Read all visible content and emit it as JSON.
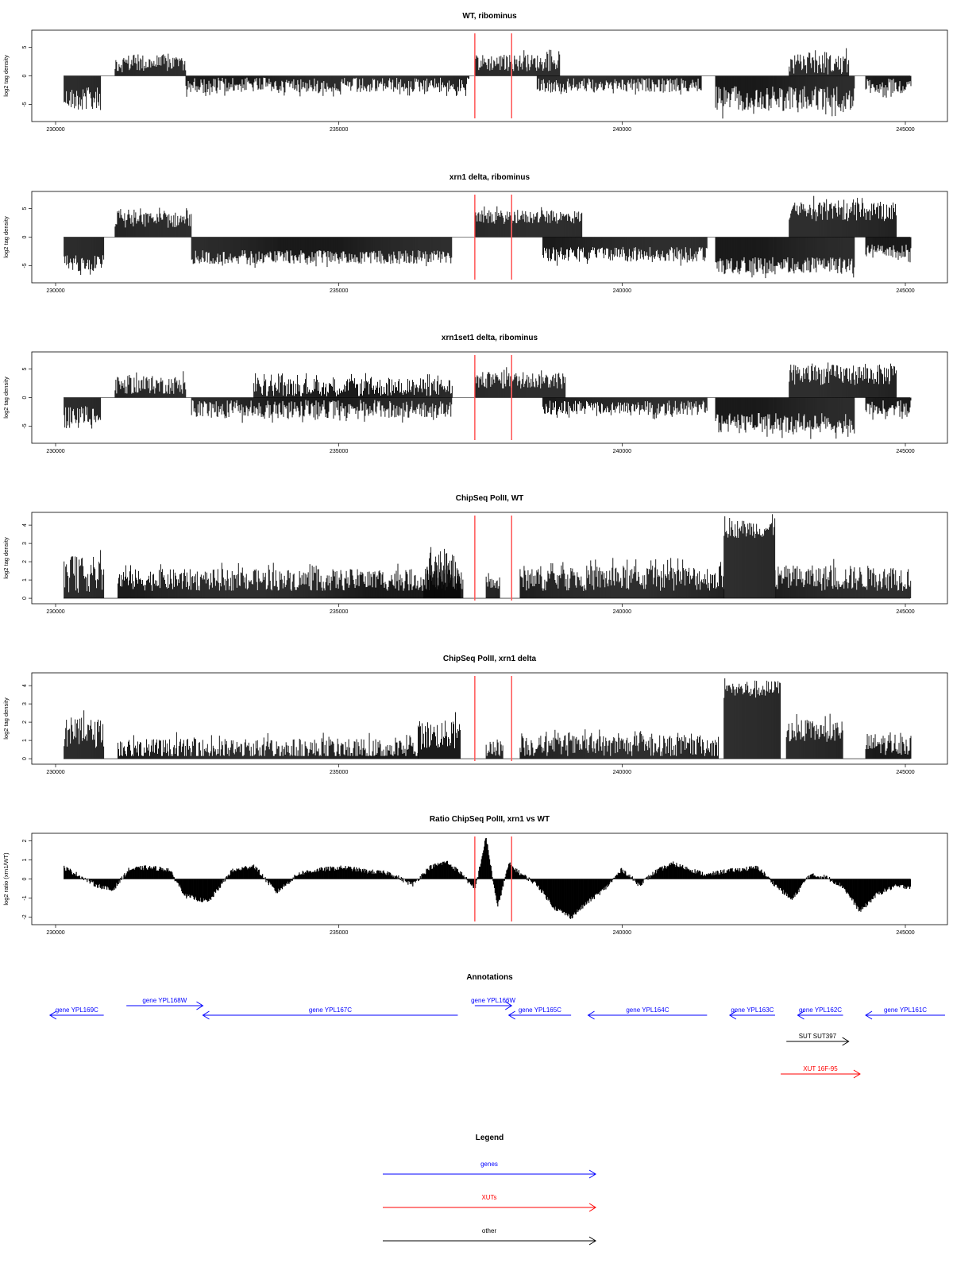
{
  "chart_data": [
    {
      "type": "bar",
      "title": "WT, ribominus",
      "ylabel": "log2 tag density",
      "xlim": [
        230000,
        245000
      ],
      "ylim": [
        -8,
        8
      ],
      "xticks": [
        "230000",
        "235000",
        "240000",
        "245000"
      ],
      "yticks": [
        "-5",
        "0",
        "5"
      ],
      "markers": [
        237400,
        238050
      ],
      "segments": [
        {
          "from": 230150,
          "to": 230800,
          "sign": -1,
          "amp": 4.0,
          "var": 2.0
        },
        {
          "from": 231050,
          "to": 232300,
          "sign": 1,
          "amp": 2.2,
          "var": 1.6
        },
        {
          "from": 232300,
          "to": 237300,
          "sign": -1,
          "amp": 1.6,
          "var": 1.3
        },
        {
          "from": 237400,
          "to": 238900,
          "sign": 1,
          "amp": 2.3,
          "var": 1.5
        },
        {
          "from": 238500,
          "to": 241400,
          "sign": -1,
          "amp": 1.6,
          "var": 1.2
        },
        {
          "from": 241650,
          "to": 244100,
          "sign": -1,
          "amp": 4.0,
          "var": 2.2
        },
        {
          "from": 242950,
          "to": 244000,
          "sign": 1,
          "amp": 2.0,
          "var": 1.8
        },
        {
          "from": 244300,
          "to": 245100,
          "sign": -1,
          "amp": 1.8,
          "var": 1.3
        }
      ]
    },
    {
      "type": "bar",
      "title": "xrn1 delta, ribominus",
      "ylabel": "log2 tag density",
      "xlim": [
        230000,
        245000
      ],
      "ylim": [
        -8,
        8
      ],
      "xticks": [
        "230000",
        "235000",
        "240000",
        "245000"
      ],
      "yticks": [
        "-5",
        "0",
        "5"
      ],
      "markers": [
        237400,
        238050
      ],
      "segments": [
        {
          "from": 230150,
          "to": 230850,
          "sign": -1,
          "amp": 4.5,
          "var": 1.5
        },
        {
          "from": 231050,
          "to": 232400,
          "sign": 1,
          "amp": 3.0,
          "var": 1.4
        },
        {
          "from": 232400,
          "to": 237000,
          "sign": -1,
          "amp": 3.5,
          "var": 1.2
        },
        {
          "from": 237400,
          "to": 239300,
          "sign": 1,
          "amp": 3.5,
          "var": 1.2
        },
        {
          "from": 238600,
          "to": 241500,
          "sign": -1,
          "amp": 3.0,
          "var": 1.3
        },
        {
          "from": 241650,
          "to": 244100,
          "sign": -1,
          "amp": 5.0,
          "var": 1.5
        },
        {
          "from": 242950,
          "to": 244850,
          "sign": 1,
          "amp": 4.5,
          "var": 1.7
        },
        {
          "from": 244300,
          "to": 245100,
          "sign": -1,
          "amp": 2.5,
          "var": 1.2
        }
      ]
    },
    {
      "type": "bar",
      "title": "xrn1set1 delta, ribominus",
      "ylabel": "log2 tag density",
      "xlim": [
        230000,
        245000
      ],
      "ylim": [
        -8,
        8
      ],
      "xticks": [
        "230000",
        "235000",
        "240000",
        "245000"
      ],
      "yticks": [
        "-5",
        "0",
        "5"
      ],
      "markers": [
        237400,
        238050
      ],
      "segments": [
        {
          "from": 230150,
          "to": 230800,
          "sign": -1,
          "amp": 3.5,
          "var": 2.0
        },
        {
          "from": 231050,
          "to": 232300,
          "sign": 1,
          "amp": 2.2,
          "var": 1.6
        },
        {
          "from": 232400,
          "to": 237000,
          "sign": -1,
          "amp": 2.0,
          "var": 1.6
        },
        {
          "from": 233500,
          "to": 237000,
          "sign": 1,
          "amp": 1.8,
          "var": 1.6
        },
        {
          "from": 237400,
          "to": 239000,
          "sign": 1,
          "amp": 3.0,
          "var": 1.5
        },
        {
          "from": 238600,
          "to": 241500,
          "sign": -1,
          "amp": 1.8,
          "var": 1.3
        },
        {
          "from": 241650,
          "to": 244100,
          "sign": -1,
          "amp": 4.5,
          "var": 1.8
        },
        {
          "from": 242950,
          "to": 244850,
          "sign": 1,
          "amp": 4.0,
          "var": 1.8
        },
        {
          "from": 244300,
          "to": 245100,
          "sign": -1,
          "amp": 1.8,
          "var": 1.3
        }
      ]
    },
    {
      "type": "bar",
      "title": "ChipSeq PolII, WT",
      "ylabel": "log2 tag density",
      "xlim": [
        230000,
        245000
      ],
      "ylim": [
        -0.3,
        4.7
      ],
      "xticks": [
        "230000",
        "235000",
        "240000",
        "245000"
      ],
      "yticks": [
        "0",
        "1",
        "2",
        "3",
        "4"
      ],
      "markers": [
        237400,
        238050
      ],
      "segments": [
        {
          "from": 230150,
          "to": 230850,
          "sign": 1,
          "amp": 1.3,
          "var": 1.0
        },
        {
          "from": 231100,
          "to": 237200,
          "sign": 1,
          "amp": 1.0,
          "var": 0.6
        },
        {
          "from": 236500,
          "to": 237150,
          "sign": 1,
          "amp": 1.4,
          "var": 1.0
        },
        {
          "from": 237600,
          "to": 237850,
          "sign": 1,
          "amp": 0.8,
          "var": 0.4
        },
        {
          "from": 238200,
          "to": 241800,
          "sign": 1,
          "amp": 1.1,
          "var": 0.7
        },
        {
          "from": 241800,
          "to": 242700,
          "sign": 1,
          "amp": 3.8,
          "var": 0.5
        },
        {
          "from": 242700,
          "to": 245100,
          "sign": 1,
          "amp": 1.1,
          "var": 0.7
        }
      ]
    },
    {
      "type": "bar",
      "title": "ChipSeq PolII, xrn1 delta",
      "ylabel": "log2 tag density",
      "xlim": [
        230000,
        245000
      ],
      "ylim": [
        -0.3,
        4.7
      ],
      "xticks": [
        "230000",
        "235000",
        "240000",
        "245000"
      ],
      "yticks": [
        "0",
        "1",
        "2",
        "3",
        "4"
      ],
      "markers": [
        237400,
        238050
      ],
      "segments": [
        {
          "from": 230150,
          "to": 230850,
          "sign": 1,
          "amp": 1.4,
          "var": 0.8
        },
        {
          "from": 231100,
          "to": 236400,
          "sign": 1,
          "amp": 0.5,
          "var": 0.6
        },
        {
          "from": 236400,
          "to": 237150,
          "sign": 1,
          "amp": 1.3,
          "var": 0.8
        },
        {
          "from": 237600,
          "to": 237900,
          "sign": 1,
          "amp": 0.6,
          "var": 0.5
        },
        {
          "from": 238200,
          "to": 241700,
          "sign": 1,
          "amp": 0.7,
          "var": 0.6
        },
        {
          "from": 241800,
          "to": 242800,
          "sign": 1,
          "amp": 3.8,
          "var": 0.5
        },
        {
          "from": 242900,
          "to": 243900,
          "sign": 1,
          "amp": 1.5,
          "var": 0.6
        },
        {
          "from": 244300,
          "to": 245100,
          "sign": 1,
          "amp": 0.8,
          "var": 0.6
        }
      ]
    },
    {
      "type": "area",
      "title": "Ratio ChipSeq PolII, xrn1 vs WT",
      "ylabel": "log2 ratio (xrn1/WT)",
      "xlim": [
        230000,
        245000
      ],
      "ylim": [
        -2.4,
        2.4
      ],
      "xticks": [
        "230000",
        "235000",
        "240000",
        "245000"
      ],
      "yticks": [
        "-2",
        "-1",
        "0",
        "1",
        "2"
      ],
      "markers": [
        237400,
        238050
      ],
      "x": [
        230150,
        230400,
        230700,
        231000,
        231300,
        231600,
        232000,
        232300,
        232700,
        233100,
        233500,
        233900,
        234300,
        234700,
        235100,
        235500,
        235900,
        236300,
        236600,
        236900,
        237200,
        237400,
        237600,
        237800,
        238000,
        238200,
        238500,
        238800,
        239100,
        239400,
        239700,
        240000,
        240300,
        240600,
        240900,
        241200,
        241500,
        241800,
        242100,
        242400,
        242700,
        243000,
        243300,
        243600,
        243900,
        244200,
        244500,
        244800,
        245100
      ],
      "y": [
        0.6,
        0.2,
        -0.3,
        -0.6,
        0.5,
        0.6,
        0.5,
        -0.9,
        -1.2,
        0.4,
        0.7,
        -0.7,
        0.3,
        0.5,
        0.6,
        0.4,
        0.3,
        -0.3,
        0.6,
        0.9,
        0.2,
        -0.6,
        2.2,
        -1.5,
        0.8,
        0.3,
        -0.3,
        -1.5,
        -2.0,
        -1.2,
        -0.5,
        0.5,
        -0.3,
        0.4,
        0.8,
        0.5,
        0.2,
        0.4,
        0.5,
        0.6,
        -0.3,
        -1.1,
        0.2,
        0.1,
        -0.4,
        -1.7,
        -0.8,
        -0.4,
        -0.4
      ]
    }
  ],
  "annotations": {
    "title": "Annotations",
    "features": [
      {
        "label": "gene YPL169C",
        "kind": "gene",
        "from": 229900,
        "to": 230850,
        "strand": "-",
        "row": 0
      },
      {
        "label": "gene YPL168W",
        "kind": "gene",
        "from": 231250,
        "to": 232600,
        "strand": "+",
        "row": -1
      },
      {
        "label": "gene YPL167C",
        "kind": "gene",
        "from": 232600,
        "to": 237100,
        "strand": "-",
        "row": 0
      },
      {
        "label": "gene YPL166W",
        "kind": "gene",
        "from": 237400,
        "to": 238050,
        "strand": "+",
        "row": -1
      },
      {
        "label": "gene YPL165C",
        "kind": "gene",
        "from": 238000,
        "to": 239100,
        "strand": "-",
        "row": 0
      },
      {
        "label": "gene YPL164C",
        "kind": "gene",
        "from": 239400,
        "to": 241500,
        "strand": "-",
        "row": 0
      },
      {
        "label": "gene YPL163C",
        "kind": "gene",
        "from": 241900,
        "to": 242700,
        "strand": "-",
        "row": 0
      },
      {
        "label": "gene YPL162C",
        "kind": "gene",
        "from": 243100,
        "to": 243900,
        "strand": "-",
        "row": 0
      },
      {
        "label": "gene YPL161C",
        "kind": "gene",
        "from": 244300,
        "to": 245700,
        "strand": "-",
        "row": 0
      },
      {
        "label": "SUT SUT397",
        "kind": "other",
        "from": 242900,
        "to": 244000,
        "strand": "+",
        "row": 1
      },
      {
        "label": "XUT 16F-95",
        "kind": "XUT",
        "from": 242800,
        "to": 244200,
        "strand": "+",
        "row": 2
      }
    ]
  },
  "legend": {
    "title": "Legend",
    "items": [
      {
        "label": "genes",
        "color": "#0000ff"
      },
      {
        "label": "XUTs",
        "color": "#ff0000"
      },
      {
        "label": "other",
        "color": "#000000"
      }
    ]
  },
  "colors": {
    "gene": "#0000ff",
    "XUT": "#ff0000",
    "other": "#000000",
    "marker": "#ff5555"
  }
}
